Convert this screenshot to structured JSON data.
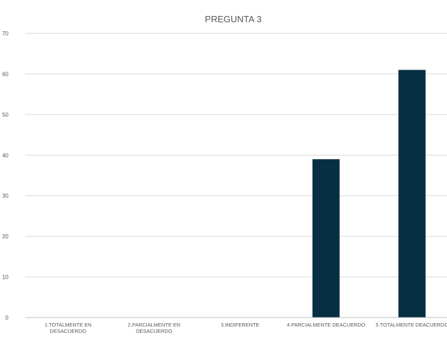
{
  "chart_data": {
    "type": "bar",
    "title": "PREGUNTA 3",
    "categories": [
      "1.TOTALMENTE EN DESACUERDO",
      "2.PARCIALMENTE EN DESACUERDO",
      "3.INDIFERENTE",
      "4.PARCIALMENTE DEACUERDO",
      "5.TOTALMENTE DEACUERDO"
    ],
    "category_label_lines": [
      [
        "1.TOTALMENTE EN",
        "DESACUERDO"
      ],
      [
        "2.PARCIALMENTE EN",
        "DESACUERDO"
      ],
      [
        "3.INDIFERENTE"
      ],
      [
        "4.PARCIALMENTE DEACUERDO"
      ],
      [
        "5.TOTALMENTE DEACUERDO"
      ]
    ],
    "values": [
      0,
      0,
      0,
      39,
      61
    ],
    "ylim": [
      0,
      70
    ],
    "yticks": [
      0,
      10,
      20,
      30,
      40,
      50,
      60,
      70
    ],
    "grid": true,
    "legend": "none",
    "bar_color": "#072f43"
  }
}
